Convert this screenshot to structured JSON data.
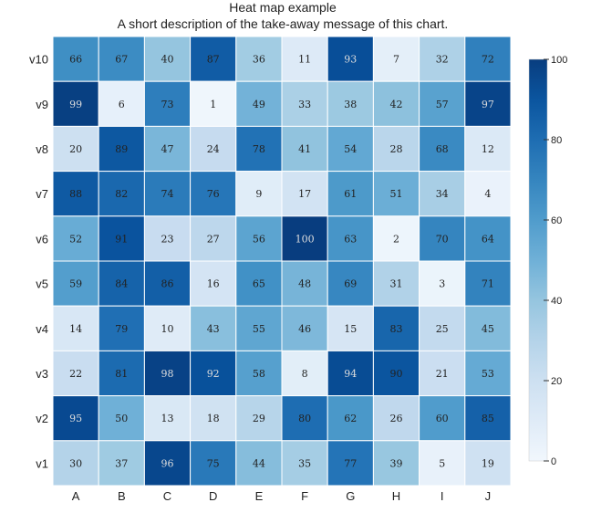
{
  "chart_data": {
    "type": "heatmap",
    "title": "Heat map example",
    "subtitle": "A short description of the take-away message of this chart.",
    "x_categories": [
      "A",
      "B",
      "C",
      "D",
      "E",
      "F",
      "G",
      "H",
      "I",
      "J"
    ],
    "y_categories": [
      "v10",
      "v9",
      "v8",
      "v7",
      "v6",
      "v5",
      "v4",
      "v3",
      "v2",
      "v1"
    ],
    "values": [
      [
        66,
        67,
        40,
        87,
        36,
        11,
        93,
        7,
        32,
        72
      ],
      [
        99,
        6,
        73,
        1,
        49,
        33,
        38,
        42,
        57,
        97
      ],
      [
        20,
        89,
        47,
        24,
        78,
        41,
        54,
        28,
        68,
        12
      ],
      [
        88,
        82,
        74,
        76,
        9,
        17,
        61,
        51,
        34,
        4
      ],
      [
        52,
        91,
        23,
        27,
        56,
        100,
        63,
        2,
        70,
        64
      ],
      [
        59,
        84,
        86,
        16,
        65,
        48,
        69,
        31,
        3,
        71
      ],
      [
        14,
        79,
        10,
        43,
        55,
        46,
        15,
        83,
        25,
        45
      ],
      [
        22,
        81,
        98,
        92,
        58,
        8,
        94,
        90,
        21,
        53
      ],
      [
        95,
        50,
        13,
        18,
        29,
        80,
        62,
        26,
        60,
        85
      ],
      [
        30,
        37,
        96,
        75,
        44,
        35,
        77,
        39,
        5,
        19
      ]
    ],
    "color_scale": {
      "min": 0,
      "max": 100,
      "ticks": [
        0,
        20,
        40,
        60,
        80,
        100
      ],
      "low_color": "#f7fbff",
      "high_color": "#08306b"
    },
    "legend_position": "right"
  }
}
